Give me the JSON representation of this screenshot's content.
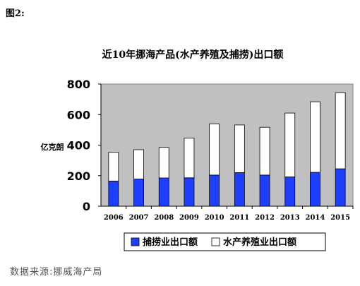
{
  "figure_label": "图2:",
  "source_note": "数据来源:挪威海产局",
  "chart_data": {
    "type": "bar",
    "stacked": true,
    "title": "近10年挪海产品(水产养殖及捕捞)出口额",
    "ylabel": "亿克朗",
    "xlabel": "",
    "categories": [
      "2006",
      "2007",
      "2008",
      "2009",
      "2010",
      "2011",
      "2012",
      "2013",
      "2014",
      "2015"
    ],
    "ylim": [
      0,
      800
    ],
    "yticks": [
      0,
      200,
      400,
      600,
      800
    ],
    "grid": false,
    "plot_background": "#c0c0c0",
    "legend_position": "bottom",
    "series": [
      {
        "name": "捕捞业出口额",
        "color": "#1f3fff",
        "values": [
          165,
          178,
          185,
          186,
          204,
          220,
          204,
          192,
          222,
          245
        ]
      },
      {
        "name": "水产养殖业出口额",
        "color": "#ffffff",
        "values": [
          188,
          192,
          200,
          260,
          335,
          312,
          313,
          418,
          462,
          498
        ]
      }
    ]
  }
}
